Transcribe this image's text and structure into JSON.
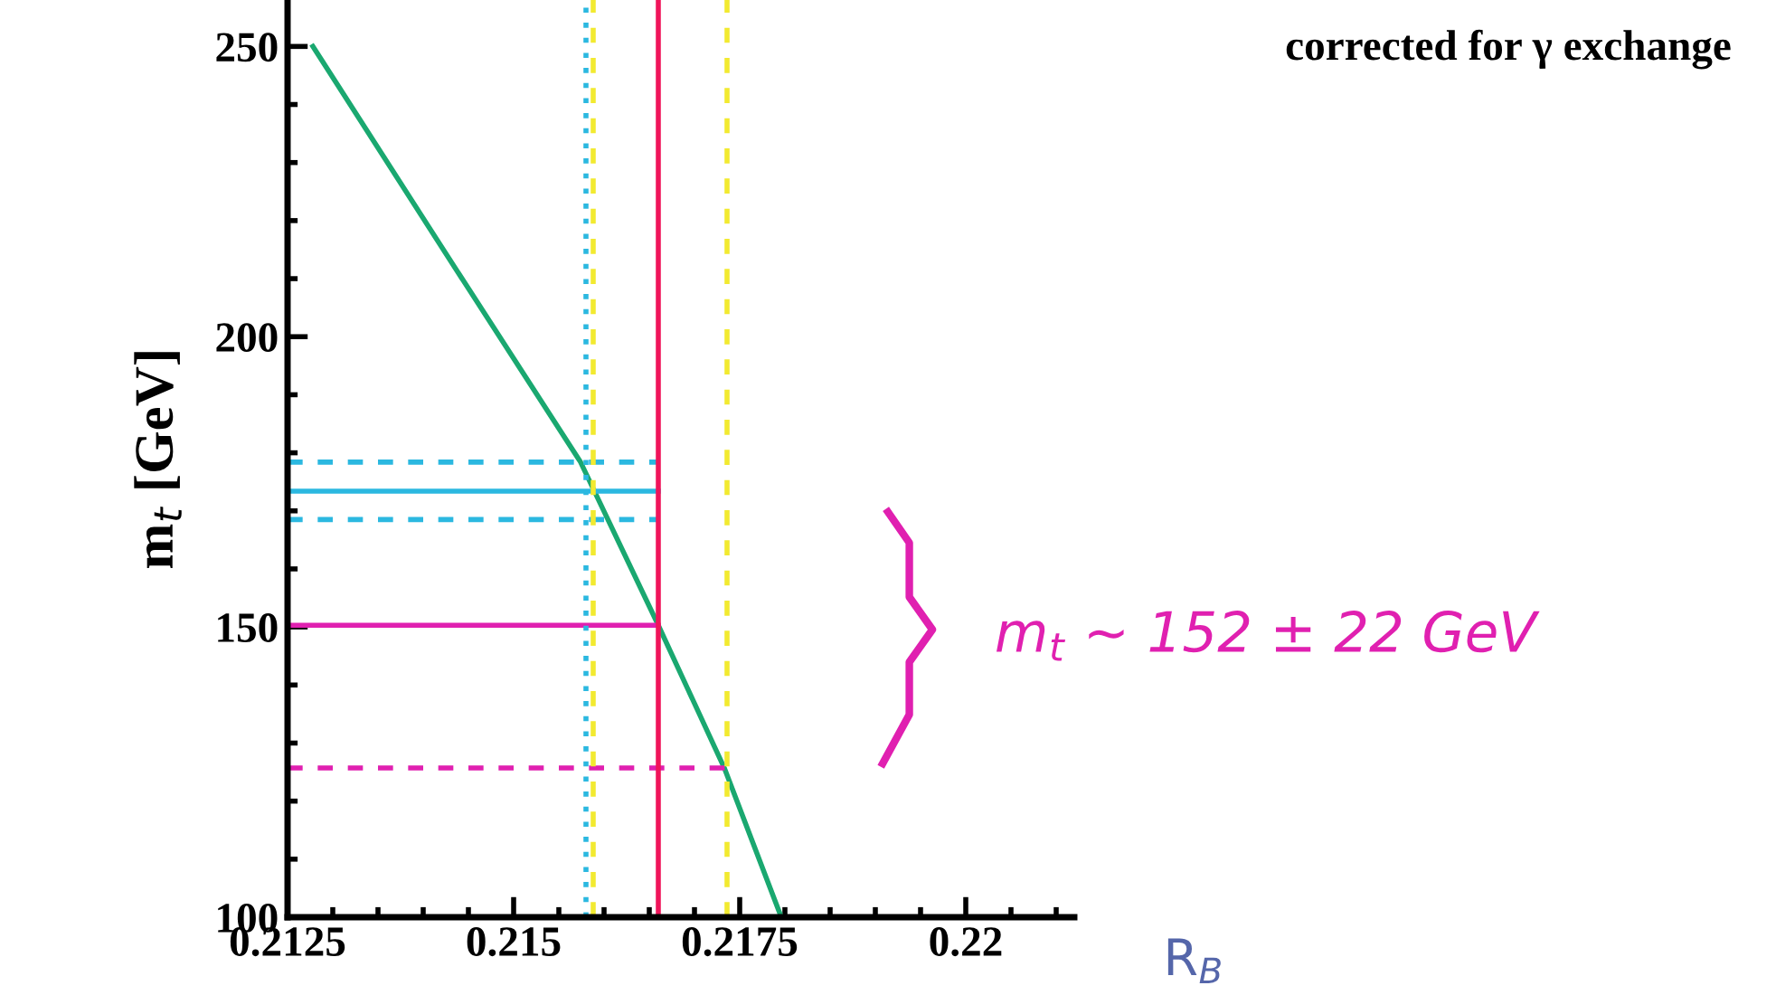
{
  "chart_data": {
    "type": "line",
    "title": "corrected for γ exchange",
    "xlabel": "R$_{B}$",
    "ylabel": "m$_{t}$ [GeV]",
    "xlim": [
      0.2125,
      0.2212
    ],
    "xticks": [
      {
        "value": 0.2125,
        "label": "0.2125"
      },
      {
        "value": 0.215,
        "label": "0.215"
      },
      {
        "value": 0.2175,
        "label": "0.2175"
      },
      {
        "value": 0.22,
        "label": "0.22"
      }
    ],
    "ylim": [
      100,
      258
    ],
    "yticks": [
      100,
      150,
      200,
      250
    ],
    "grid": false,
    "legend": false,
    "marker": "none",
    "series": [
      {
        "color": "#1aa870",
        "line_style": "solid",
        "x": [
          0.21278,
          0.21421,
          0.21574,
          0.2166,
          0.21733,
          0.21796
        ],
        "values": [
          250,
          215.3,
          178.4,
          150.3,
          125.7,
          100
        ]
      },
      {
        "color": "#2bb8e0",
        "line_style": "dashed",
        "x": [
          0.2125,
          0.2166
        ],
        "values": [
          178.4,
          178.4
        ]
      },
      {
        "color": "#2bb8e0",
        "line_style": "solid",
        "x": [
          0.2125,
          0.2166
        ],
        "values": [
          173.4,
          173.4
        ]
      },
      {
        "color": "#2bb8e0",
        "line_style": "dashed",
        "x": [
          0.2125,
          0.2166
        ],
        "values": [
          168.5,
          168.5
        ]
      },
      {
        "color": "#e020b0",
        "line_style": "solid",
        "x": [
          0.2125,
          0.2166
        ],
        "values": [
          150.3,
          150.3
        ]
      },
      {
        "color": "#e020b0",
        "line_style": "dashed",
        "x": [
          0.2125,
          0.21736
        ],
        "values": [
          125.7,
          125.7
        ]
      }
    ],
    "ref_lines": [
      {
        "axis": "x",
        "value": 0.2158,
        "color": "#2bb8e0",
        "line_style": "dotted"
      },
      {
        "axis": "x",
        "value": 0.21588,
        "color": "#f2ea30",
        "line_style": "dashed"
      },
      {
        "axis": "x",
        "value": 0.2166,
        "color": "#f0145a",
        "line_style": "solid"
      },
      {
        "axis": "x",
        "value": 0.21736,
        "color": "#f2ea30",
        "line_style": "dashed"
      }
    ],
    "annotations": [
      "m$_{t}$ ~ 152 ± 22 GeV"
    ]
  }
}
